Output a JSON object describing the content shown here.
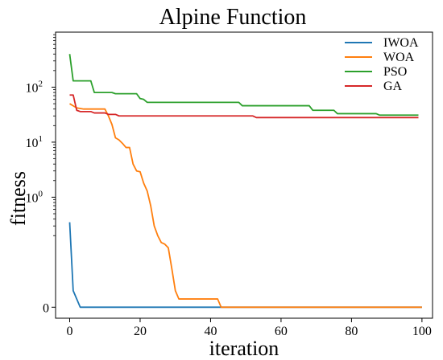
{
  "chart_data": {
    "type": "line",
    "title": "Alpine Function",
    "xlabel": "iteration",
    "ylabel": "fitness",
    "xlim": [
      -4,
      103
    ],
    "yscale": "symlog",
    "symlog_linthresh": 0.1,
    "ylim": [
      -0.02,
      1000
    ],
    "x_ticks": [
      0,
      20,
      40,
      60,
      80,
      100
    ],
    "x_tick_labels": [
      "0",
      "20",
      "40",
      "60",
      "80",
      "100"
    ],
    "y_ticks": [
      0,
      1,
      10,
      100
    ],
    "y_tick_labels": [
      "0",
      "10^0",
      "10^1",
      "10^2"
    ],
    "grid": false,
    "legend_position": "top-right",
    "series": [
      {
        "name": "IWOA",
        "color": "#1f77b4",
        "points": [
          [
            0,
            0.35
          ],
          [
            1,
            0.03
          ],
          [
            3,
            0.0
          ],
          [
            100,
            0.0
          ]
        ]
      },
      {
        "name": "WOA",
        "color": "#ff7f0e",
        "points": [
          [
            0,
            50
          ],
          [
            2,
            42
          ],
          [
            4,
            40
          ],
          [
            10,
            40
          ],
          [
            11,
            30
          ],
          [
            12,
            21
          ],
          [
            13,
            12
          ],
          [
            14,
            11
          ],
          [
            15,
            9.5
          ],
          [
            16,
            8.0
          ],
          [
            17,
            8.0
          ],
          [
            18,
            4.0
          ],
          [
            19,
            3.0
          ],
          [
            20,
            2.9
          ],
          [
            21,
            1.8
          ],
          [
            22,
            1.3
          ],
          [
            23,
            0.7
          ],
          [
            24,
            0.3
          ],
          [
            25,
            0.2
          ],
          [
            26,
            0.15
          ],
          [
            27,
            0.14
          ],
          [
            28,
            0.12
          ],
          [
            29,
            0.07
          ],
          [
            30,
            0.03
          ],
          [
            31,
            0.015
          ],
          [
            42,
            0.015
          ],
          [
            43,
            0.0
          ],
          [
            100,
            0.0
          ]
        ]
      },
      {
        "name": "PSO",
        "color": "#2ca02c",
        "points": [
          [
            0,
            400
          ],
          [
            1,
            130
          ],
          [
            6,
            130
          ],
          [
            7,
            80
          ],
          [
            12,
            80
          ],
          [
            13,
            76
          ],
          [
            19,
            76
          ],
          [
            20,
            62
          ],
          [
            21,
            60
          ],
          [
            22,
            53
          ],
          [
            48,
            53
          ],
          [
            49,
            46
          ],
          [
            68,
            46
          ],
          [
            69,
            38
          ],
          [
            75,
            38
          ],
          [
            76,
            33
          ],
          [
            87,
            33
          ],
          [
            88,
            31
          ],
          [
            99,
            31
          ]
        ]
      },
      {
        "name": "GA",
        "color": "#d62728",
        "points": [
          [
            0,
            72
          ],
          [
            1,
            72
          ],
          [
            2,
            38
          ],
          [
            3,
            36
          ],
          [
            6,
            36
          ],
          [
            7,
            34
          ],
          [
            10,
            34
          ],
          [
            11,
            32
          ],
          [
            13,
            32
          ],
          [
            14,
            30
          ],
          [
            52,
            30
          ],
          [
            53,
            28
          ],
          [
            99,
            28
          ]
        ]
      }
    ]
  }
}
